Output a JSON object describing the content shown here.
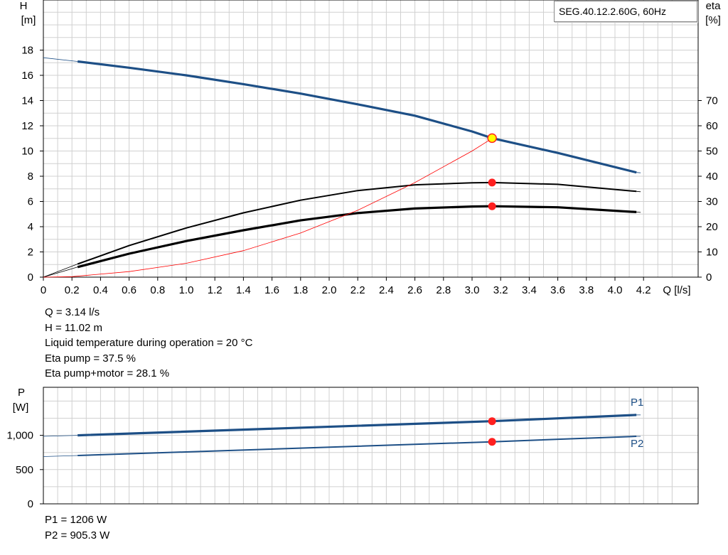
{
  "title": "SEG.40.12.2.60G, 60Hz",
  "colors": {
    "head": "#1d4f86",
    "power": "#1d4f86",
    "eta": "#000000",
    "npsh": "#ff0000",
    "dutyPoint": "#ff2020",
    "dutyFill": "#ffff00"
  },
  "chart_data": [
    {
      "type": "line",
      "x_label": "Q [l/s]",
      "y_label_left": [
        "H",
        "[m]"
      ],
      "y_label_right": [
        "eta",
        "[%]"
      ],
      "xlim": [
        0,
        4.2
      ],
      "ylim_left": [
        0,
        20
      ],
      "ylim_right": [
        0,
        70
      ],
      "x_ticks": [
        "0",
        "0.2",
        "0.4",
        "0.6",
        "0.8",
        "1.0",
        "1.2",
        "1.4",
        "1.6",
        "1.8",
        "2.0",
        "2.2",
        "2.4",
        "2.6",
        "2.8",
        "3.0",
        "3.2",
        "3.4",
        "3.6",
        "3.8",
        "4.0",
        "4.2"
      ],
      "y_ticks_left": [
        "0",
        "2",
        "4",
        "6",
        "8",
        "10",
        "12",
        "14",
        "16",
        "18"
      ],
      "y_ticks_right": [
        "0",
        "10",
        "20",
        "30",
        "40",
        "50",
        "60",
        "70"
      ],
      "grid": true,
      "series": [
        {
          "kind": "head",
          "axis": "left",
          "x": [
            0,
            0.24,
            0.6,
            1.0,
            1.4,
            1.8,
            2.2,
            2.6,
            3.0,
            3.14,
            3.6,
            4.15
          ],
          "y": [
            17.4,
            17.1,
            16.6,
            16.0,
            15.3,
            14.55,
            13.7,
            12.8,
            11.55,
            11.02,
            9.85,
            8.3
          ]
        },
        {
          "kind": "eta",
          "axis": "right",
          "x": [
            0,
            0.24,
            0.6,
            1.0,
            1.4,
            1.8,
            2.2,
            2.6,
            3.0,
            3.14,
            3.6,
            4.15
          ],
          "y": [
            0,
            5.2,
            12.5,
            19.5,
            25.5,
            30.5,
            34.3,
            36.6,
            37.4,
            37.5,
            36.8,
            34.0
          ]
        },
        {
          "kind": "eta",
          "axis": "right",
          "x": [
            0,
            0.24,
            0.6,
            1.0,
            1.4,
            1.8,
            2.2,
            2.6,
            3.0,
            3.14,
            3.6,
            4.15
          ],
          "y": [
            0,
            4.0,
            9.3,
            14.3,
            18.6,
            22.5,
            25.4,
            27.2,
            28.0,
            28.1,
            27.7,
            25.8
          ]
        },
        {
          "kind": "npsh",
          "axis": "right",
          "x": [
            0,
            0.2,
            0.6,
            1.0,
            1.4,
            1.8,
            2.2,
            2.6,
            3.0,
            3.14
          ],
          "y": [
            0,
            0.2,
            2.2,
            5.5,
            10.5,
            17.5,
            26.5,
            37.5,
            50.0,
            55.0
          ]
        }
      ],
      "duty_points": [
        {
          "axis": "left",
          "x": 3.14,
          "y": 11.02,
          "style": "yellow"
        },
        {
          "axis": "right",
          "x": 3.14,
          "y": 37.5,
          "style": "red"
        },
        {
          "axis": "right",
          "x": 3.14,
          "y": 28.1,
          "style": "red"
        }
      ]
    },
    {
      "type": "line",
      "y_label": [
        "P",
        "[W]"
      ],
      "xlim": [
        0,
        4.2
      ],
      "ylim": [
        0,
        1500
      ],
      "y_ticks": [
        "0",
        "500",
        "1,000"
      ],
      "grid": true,
      "series": [
        {
          "name": "P1",
          "x": [
            0,
            0.24,
            3.14,
            4.15
          ],
          "y": [
            985,
            1000,
            1206,
            1298
          ]
        },
        {
          "name": "P2",
          "x": [
            0,
            0.24,
            3.14,
            4.15
          ],
          "y": [
            690,
            705,
            905.3,
            985
          ]
        }
      ],
      "duty_points": [
        {
          "x": 3.14,
          "y": 1206,
          "style": "red"
        },
        {
          "x": 3.14,
          "y": 905.3,
          "style": "red"
        }
      ]
    }
  ],
  "info": {
    "q": "Q = 3.14 l/s",
    "h": "H = 11.02 m",
    "temp": "Liquid temperature during operation = 20 °C",
    "eta_pump": "Eta pump = 37.5 %",
    "eta_total": "Eta pump+motor = 28.1 %"
  },
  "power_info": {
    "p1": "P1 = 1206 W",
    "p2": "P2 = 905.3 W"
  }
}
